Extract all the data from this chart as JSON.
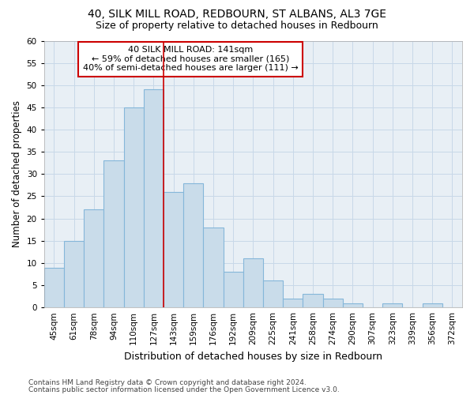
{
  "title1": "40, SILK MILL ROAD, REDBOURN, ST ALBANS, AL3 7GE",
  "title2": "Size of property relative to detached houses in Redbourn",
  "xlabel": "Distribution of detached houses by size in Redbourn",
  "ylabel": "Number of detached properties",
  "categories": [
    "45sqm",
    "61sqm",
    "78sqm",
    "94sqm",
    "110sqm",
    "127sqm",
    "143sqm",
    "159sqm",
    "176sqm",
    "192sqm",
    "209sqm",
    "225sqm",
    "241sqm",
    "258sqm",
    "274sqm",
    "290sqm",
    "307sqm",
    "323sqm",
    "339sqm",
    "356sqm",
    "372sqm"
  ],
  "values": [
    9,
    15,
    22,
    33,
    45,
    49,
    26,
    28,
    18,
    8,
    11,
    6,
    2,
    3,
    2,
    1,
    0,
    1,
    0,
    1,
    0
  ],
  "bar_color": "#c9dcea",
  "bar_edge_color": "#85b7d9",
  "grid_color": "#c8d8e8",
  "bg_color": "#e8eff5",
  "annotation_text": "40 SILK MILL ROAD: 141sqm\n← 59% of detached houses are smaller (165)\n40% of semi-detached houses are larger (111) →",
  "annotation_box_color": "#ffffff",
  "annotation_border_color": "#cc0000",
  "red_line_index": 6,
  "ylim": [
    0,
    60
  ],
  "yticks": [
    0,
    5,
    10,
    15,
    20,
    25,
    30,
    35,
    40,
    45,
    50,
    55,
    60
  ],
  "footer1": "Contains HM Land Registry data © Crown copyright and database right 2024.",
  "footer2": "Contains public sector information licensed under the Open Government Licence v3.0.",
  "title1_fontsize": 10,
  "title2_fontsize": 9,
  "xlabel_fontsize": 9,
  "ylabel_fontsize": 8.5,
  "tick_fontsize": 7.5,
  "annotation_fontsize": 8,
  "footer_fontsize": 6.5
}
